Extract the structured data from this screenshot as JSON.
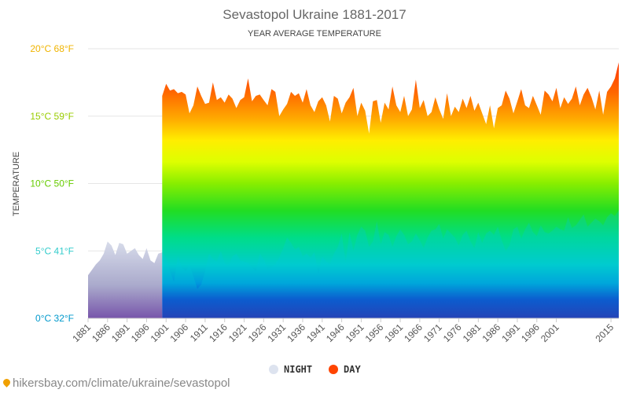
{
  "chart_data": {
    "type": "area",
    "title": "Sevastopol Ukraine 1881-2017",
    "subtitle": "YEAR AVERAGE TEMPERATURE",
    "ylabel": "TEMPERATURE",
    "xlabel": "",
    "ylim": [
      0,
      20
    ],
    "xlim": [
      1881,
      2017
    ],
    "yticks": [
      {
        "value": 0,
        "label": "0°C 32°F",
        "color": "#0099cc"
      },
      {
        "value": 5,
        "label": "5°C 41°F",
        "color": "#33cccc"
      },
      {
        "value": 10,
        "label": "10°C 50°F",
        "color": "#66cc00"
      },
      {
        "value": 15,
        "label": "15°C 59°F",
        "color": "#99cc00"
      },
      {
        "value": 20,
        "label": "20°C 68°F",
        "color": "#f0b400"
      }
    ],
    "xticks": [
      "1881",
      "1886",
      "1891",
      "1896",
      "1901",
      "1906",
      "1911",
      "1916",
      "1921",
      "1926",
      "1931",
      "1936",
      "1941",
      "1946",
      "1951",
      "1956",
      "1961",
      "1966",
      "1971",
      "1976",
      "1981",
      "1986",
      "1991",
      "1996",
      "2001",
      "2015"
    ],
    "grid": true,
    "legend_position": "bottom-center",
    "series": [
      {
        "name": "NIGHT",
        "color": "#dde3ef",
        "x": [
          1881,
          1882,
          1883,
          1884,
          1885,
          1886,
          1887,
          1888,
          1889,
          1890,
          1891,
          1892,
          1893,
          1894,
          1895,
          1896,
          1897,
          1898,
          1899,
          1900,
          1901,
          1902,
          1903,
          1904,
          1905,
          1906,
          1907,
          1908,
          1909,
          1910,
          1911,
          1912,
          1913,
          1914,
          1915,
          1916,
          1917,
          1918,
          1919,
          1920,
          1921,
          1922,
          1923,
          1924,
          1925,
          1926,
          1927,
          1928,
          1929,
          1930,
          1931,
          1932,
          1933,
          1934,
          1935,
          1936,
          1937,
          1938,
          1939,
          1940,
          1941,
          1942,
          1943,
          1944,
          1945,
          1946,
          1947,
          1948,
          1949,
          1950,
          1951,
          1952,
          1953,
          1954,
          1955,
          1956,
          1957,
          1958,
          1959,
          1960,
          1961,
          1962,
          1963,
          1964,
          1965,
          1966,
          1967,
          1968,
          1969,
          1970,
          1971,
          1972,
          1973,
          1974,
          1975,
          1976,
          1977,
          1978,
          1979,
          1980,
          1981,
          1982,
          1983,
          1984,
          1985,
          1986,
          1987,
          1988,
          1989,
          1990,
          1991,
          1992,
          1993,
          1994,
          1995,
          1996,
          1997,
          1998,
          1999,
          2000,
          2001,
          2002,
          2003,
          2004,
          2005,
          2006,
          2007,
          2008,
          2009,
          2010,
          2011,
          2012,
          2013,
          2014,
          2015,
          2016,
          2017
        ],
        "values": [
          3.2,
          3.6,
          4.0,
          4.3,
          4.8,
          5.7,
          5.4,
          4.7,
          5.6,
          5.5,
          4.8,
          5.0,
          5.2,
          4.7,
          4.4,
          5.2,
          4.3,
          4.1,
          4.8,
          4.9,
          4.5,
          3.5,
          2.7,
          4.6,
          3.8,
          3.5,
          4.0,
          3.1,
          2.2,
          2.5,
          3.5,
          4.8,
          4.4,
          4.2,
          5.0,
          4.1,
          3.9,
          4.6,
          4.8,
          4.3,
          4.2,
          4.1,
          3.8,
          3.5,
          4.8,
          4.4,
          3.7,
          3.8,
          4.0,
          4.5,
          5.2,
          6.0,
          5.6,
          5.1,
          5.3,
          4.6,
          4.8,
          4.5,
          4.9,
          3.3,
          4.6,
          4.2,
          4.0,
          4.8,
          5.3,
          6.3,
          4.1,
          6.4,
          5.0,
          6.2,
          6.8,
          6.5,
          5.3,
          5.7,
          7.2,
          5.5,
          6.4,
          6.2,
          5.3,
          6.1,
          6.6,
          6.2,
          5.5,
          5.7,
          6.3,
          5.8,
          5.2,
          6.0,
          6.5,
          6.6,
          7.0,
          5.9,
          6.6,
          6.3,
          6.0,
          5.4,
          6.2,
          6.5,
          5.7,
          5.2,
          6.4,
          5.6,
          6.3,
          6.5,
          6.2,
          6.8,
          5.8,
          5.0,
          5.4,
          6.6,
          6.8,
          5.9,
          6.6,
          7.1,
          6.4,
          6.1,
          6.9,
          6.4,
          6.3,
          6.5,
          6.8,
          6.6,
          6.5,
          7.5,
          6.7,
          6.9,
          7.3,
          7.7,
          6.8,
          7.1,
          7.4,
          7.2,
          6.9,
          7.5,
          7.8,
          7.6,
          8.0
        ]
      },
      {
        "name": "DAY",
        "color": "#ff4400",
        "x": [
          1900,
          1901,
          1902,
          1903,
          1904,
          1905,
          1906,
          1907,
          1908,
          1909,
          1910,
          1911,
          1912,
          1913,
          1914,
          1915,
          1916,
          1917,
          1918,
          1919,
          1920,
          1921,
          1922,
          1923,
          1924,
          1925,
          1926,
          1927,
          1928,
          1929,
          1930,
          1931,
          1932,
          1933,
          1934,
          1935,
          1936,
          1937,
          1938,
          1939,
          1940,
          1941,
          1942,
          1943,
          1944,
          1945,
          1946,
          1947,
          1948,
          1949,
          1950,
          1951,
          1952,
          1953,
          1954,
          1955,
          1956,
          1957,
          1958,
          1959,
          1960,
          1961,
          1962,
          1963,
          1964,
          1965,
          1966,
          1967,
          1968,
          1969,
          1970,
          1971,
          1972,
          1973,
          1974,
          1975,
          1976,
          1977,
          1978,
          1979,
          1980,
          1981,
          1982,
          1983,
          1984,
          1985,
          1986,
          1987,
          1988,
          1989,
          1990,
          1991,
          1992,
          1993,
          1994,
          1995,
          1996,
          1997,
          1998,
          1999,
          2000,
          2001,
          2002,
          2003,
          2004,
          2005,
          2006,
          2007,
          2008,
          2009,
          2010,
          2011,
          2012,
          2013,
          2014,
          2015,
          2016,
          2017
        ],
        "values": [
          16.5,
          17.4,
          16.9,
          17.0,
          16.7,
          16.8,
          16.6,
          15.2,
          15.8,
          17.2,
          16.5,
          15.9,
          16.0,
          17.5,
          16.2,
          16.4,
          16.0,
          16.6,
          16.3,
          15.6,
          16.2,
          16.4,
          17.8,
          16.1,
          16.5,
          16.6,
          16.2,
          15.8,
          17.0,
          16.8,
          15.0,
          15.5,
          15.9,
          16.8,
          16.5,
          16.7,
          16.0,
          17.0,
          15.8,
          15.3,
          16.1,
          16.4,
          15.8,
          14.6,
          16.5,
          16.3,
          15.2,
          16.0,
          16.4,
          17.1,
          15.0,
          16.0,
          15.4,
          13.7,
          16.1,
          16.2,
          14.5,
          16.0,
          15.5,
          17.2,
          15.8,
          15.3,
          16.5,
          15.0,
          15.5,
          17.7,
          15.6,
          16.2,
          15.0,
          15.3,
          16.4,
          15.5,
          14.8,
          16.7,
          15.0,
          15.7,
          15.3,
          16.3,
          15.6,
          16.5,
          15.4,
          16.0,
          15.2,
          14.4,
          15.8,
          14.1,
          15.6,
          15.8,
          16.9,
          16.3,
          15.2,
          16.1,
          17.0,
          15.8,
          15.6,
          16.5,
          15.8,
          15.1,
          16.9,
          16.6,
          16.1,
          17.1,
          15.6,
          16.4,
          15.9,
          16.3,
          17.2,
          15.8,
          16.6,
          17.1,
          16.4,
          15.5,
          16.9,
          15.1,
          16.8,
          17.2,
          17.8,
          19.0
        ]
      }
    ]
  },
  "source": {
    "text": "hikersbay.com/climate/ukraine/sevastopol"
  }
}
